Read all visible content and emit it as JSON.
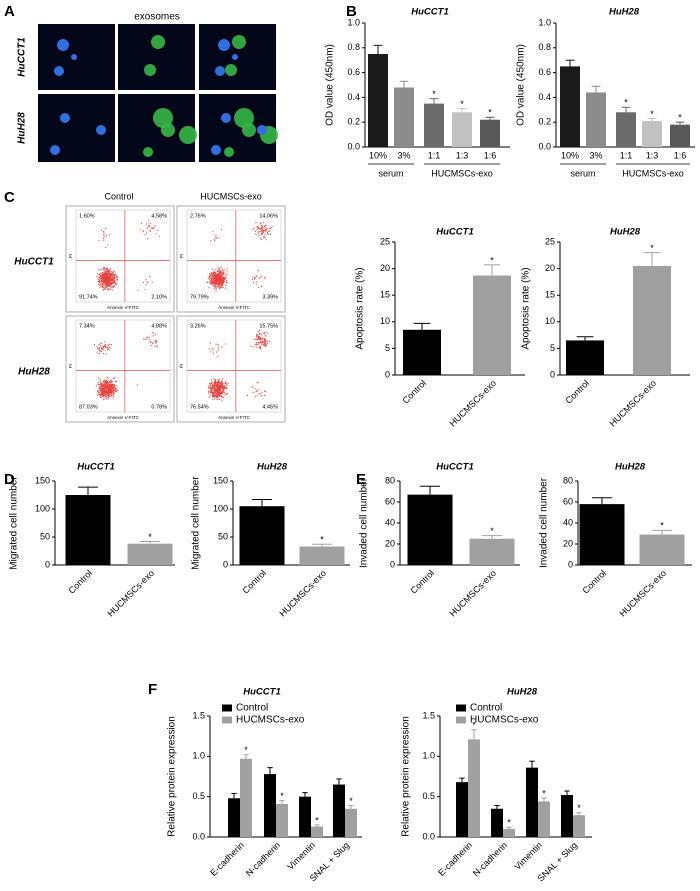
{
  "panel_labels": [
    "A",
    "B",
    "C",
    "D",
    "E",
    "F"
  ],
  "panel_a": {
    "column_title": "exosomes",
    "rows": [
      "HuCCT1",
      "HuH28"
    ]
  },
  "panel_c_flow": {
    "columns": [
      "Control",
      "HUCMSCs-exo"
    ],
    "rows": [
      "HuCCT1",
      "HuH28"
    ],
    "x_label": "Annexin V-FITC",
    "y_label": "PI",
    "quadrants": [
      [
        [
          "1.60%",
          "4.58%",
          "91.74%",
          "2.10%"
        ],
        [
          "2.76%",
          "14.06%",
          "79.79%",
          "3.39%"
        ]
      ],
      [
        [
          "7.34%",
          "4.88%",
          "87.03%",
          "0.78%"
        ],
        [
          "3.26%",
          "15.75%",
          "76.54%",
          "4.45%"
        ]
      ]
    ]
  },
  "chart_data": [
    {
      "type": "bar",
      "title": "HuCCT1",
      "ylabel": "OD value (450nm)",
      "groups": [
        {
          "label": "serum",
          "categories": [
            "10%",
            "3%"
          ]
        },
        {
          "label": "HUCMSCs-exo",
          "categories": [
            "1:1",
            "1:3",
            "1:6"
          ]
        }
      ],
      "values": [
        0.75,
        0.48,
        0.35,
        0.28,
        0.22
      ],
      "errors": [
        0.07,
        0.05,
        0.04,
        0.03,
        0.02
      ],
      "markers": [
        null,
        null,
        "*",
        "*",
        "*"
      ],
      "colors": [
        "#1a1a1a",
        "#8c8c8c",
        "#6b6b6b",
        "#c2c2c2",
        "#595959"
      ],
      "ylim": [
        0,
        1
      ],
      "yticks": [
        {
          "value": 0,
          "label": "0.0"
        },
        0.2,
        0.4,
        0.6,
        0.8,
        {
          "value": 1,
          "label": "1.0"
        }
      ]
    },
    {
      "type": "bar",
      "title": "HuH28",
      "ylabel": "OD value (450nm)",
      "groups": [
        {
          "label": "serum",
          "categories": [
            "10%",
            "3%"
          ]
        },
        {
          "label": "HUCMSCs-exo",
          "categories": [
            "1:1",
            "1:3",
            "1:6"
          ]
        }
      ],
      "values": [
        0.65,
        0.44,
        0.28,
        0.21,
        0.18
      ],
      "errors": [
        0.05,
        0.05,
        0.04,
        0.02,
        0.02
      ],
      "markers": [
        null,
        null,
        "*",
        "*",
        "*"
      ],
      "colors": [
        "#1a1a1a",
        "#8c8c8c",
        "#6b6b6b",
        "#c2c2c2",
        "#595959"
      ],
      "ylim": [
        0,
        1
      ],
      "yticks": [
        {
          "value": 0,
          "label": "0.0"
        },
        0.2,
        0.4,
        0.6,
        0.8,
        {
          "value": 1,
          "label": "1.0"
        }
      ]
    },
    {
      "type": "bar",
      "title": "HuCCT1",
      "ylabel": "Apoptosis rate (%)",
      "categories": [
        "Control",
        "HUCMSCs-exo"
      ],
      "values": [
        8.5,
        18.7
      ],
      "errors": [
        1.2,
        2.0
      ],
      "markers": [
        null,
        "*"
      ],
      "colors": [
        "#000000",
        "#a0a0a0"
      ],
      "ylim": [
        0,
        25
      ],
      "yticks": [
        0,
        5,
        10,
        15,
        20,
        25
      ]
    },
    {
      "type": "bar",
      "title": "HuH28",
      "ylabel": "Apoptosis rate (%)",
      "categories": [
        "Control",
        "HUCMSCs-exo"
      ],
      "values": [
        6.5,
        20.5
      ],
      "errors": [
        0.7,
        2.5
      ],
      "markers": [
        null,
        "*"
      ],
      "colors": [
        "#000000",
        "#a0a0a0"
      ],
      "ylim": [
        0,
        25
      ],
      "yticks": [
        0,
        5,
        10,
        15,
        20,
        25
      ]
    },
    {
      "type": "bar",
      "title": "HuCCT1",
      "ylabel": "Migrated cell number",
      "categories": [
        "Control",
        "HUCMSCs-exo"
      ],
      "values": [
        125,
        38
      ],
      "errors": [
        14,
        4
      ],
      "markers": [
        null,
        "*"
      ],
      "colors": [
        "#000000",
        "#a0a0a0"
      ],
      "ylim": [
        0,
        150
      ],
      "yticks": [
        0,
        50,
        100,
        150
      ]
    },
    {
      "type": "bar",
      "title": "HuH28",
      "ylabel": "Migrated cell number",
      "categories": [
        "Control",
        "HUCMSCs-exo"
      ],
      "values": [
        105,
        33
      ],
      "errors": [
        12,
        4
      ],
      "markers": [
        null,
        "*"
      ],
      "colors": [
        "#000000",
        "#a0a0a0"
      ],
      "ylim": [
        0,
        150
      ],
      "yticks": [
        0,
        50,
        100,
        150
      ]
    },
    {
      "type": "bar",
      "title": "HuCCT1",
      "ylabel": "Invaded cell number",
      "categories": [
        "Control",
        "HUCMSCs-exo"
      ],
      "values": [
        67,
        25
      ],
      "errors": [
        8,
        3
      ],
      "markers": [
        null,
        "*"
      ],
      "colors": [
        "#000000",
        "#a0a0a0"
      ],
      "ylim": [
        0,
        80
      ],
      "yticks": [
        0,
        20,
        40,
        60,
        80
      ]
    },
    {
      "type": "bar",
      "title": "HuH28",
      "ylabel": "Invaded cell number",
      "categories": [
        "Control",
        "HUCMSCs-exo"
      ],
      "values": [
        58,
        29
      ],
      "errors": [
        6,
        4
      ],
      "markers": [
        null,
        "*"
      ],
      "colors": [
        "#000000",
        "#a0a0a0"
      ],
      "ylim": [
        0,
        80
      ],
      "yticks": [
        0,
        20,
        40,
        60,
        80
      ]
    },
    {
      "type": "bar",
      "title": "HuCCT1",
      "ylabel": "Relative protein expression",
      "categories": [
        "E-cadherin",
        "N-cadherin",
        "Vimentin",
        "SNAL + Slug"
      ],
      "series": [
        {
          "name": "Control",
          "color": "#000000",
          "values": [
            0.48,
            0.78,
            0.5,
            0.65
          ],
          "errors": [
            0.06,
            0.08,
            0.05,
            0.07
          ]
        },
        {
          "name": "HUCMSCs-exo",
          "color": "#a0a0a0",
          "values": [
            0.97,
            0.41,
            0.13,
            0.35
          ],
          "errors": [
            0.05,
            0.04,
            0.02,
            0.04
          ],
          "markers": [
            "*",
            "*",
            "*",
            "*"
          ]
        }
      ],
      "ylim": [
        0,
        1.5
      ],
      "yticks": [
        {
          "value": 0,
          "label": "0.0"
        },
        0.5,
        {
          "value": 1,
          "label": "1.0"
        },
        1.5
      ]
    },
    {
      "type": "bar",
      "title": "HuH28",
      "ylabel": "Relative protein expression",
      "categories": [
        "E-cadherin",
        "N-cadherin",
        "Vimentin",
        "SNAL + Slug"
      ],
      "series": [
        {
          "name": "Control",
          "color": "#000000",
          "values": [
            0.68,
            0.35,
            0.86,
            0.52
          ],
          "errors": [
            0.05,
            0.04,
            0.08,
            0.05
          ]
        },
        {
          "name": "HUCMSCs-exo",
          "color": "#a0a0a0",
          "values": [
            1.21,
            0.1,
            0.44,
            0.27
          ],
          "errors": [
            0.12,
            0.02,
            0.04,
            0.03
          ],
          "markers": [
            "*",
            "*",
            "*",
            "*"
          ]
        }
      ],
      "ylim": [
        0,
        1.5
      ],
      "yticks": [
        {
          "value": 0,
          "label": "0.0"
        },
        0.5,
        {
          "value": 1,
          "label": "1.0"
        },
        1.5
      ]
    }
  ]
}
